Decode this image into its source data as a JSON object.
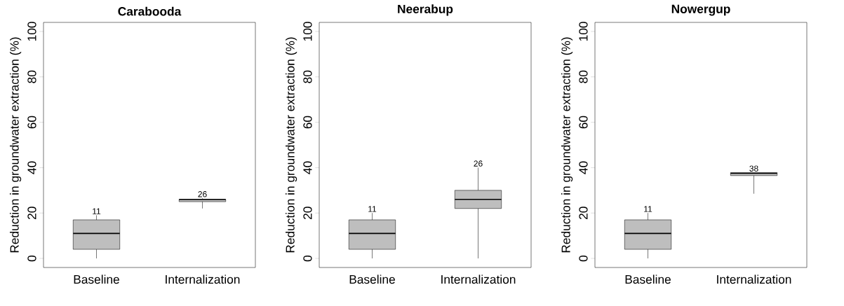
{
  "chart_data": [
    {
      "type": "box",
      "title": "Carabooda",
      "ylabel": "Reduction in groundwater extraction (%)",
      "categories": [
        "Baseline",
        "Internalization"
      ],
      "color": "#bebebe",
      "ylim": [
        -4,
        104
      ],
      "yticks": [
        0,
        20,
        40,
        60,
        80,
        100
      ],
      "grid": false,
      "boxes": [
        {
          "low": 0,
          "q1": 4,
          "median": 11,
          "q3": 17,
          "high": 19
        },
        {
          "low": 22,
          "q1": 25,
          "median": 26,
          "q3": 26,
          "high": 26.5
        }
      ],
      "annotations": [
        "11",
        "26"
      ]
    },
    {
      "type": "box",
      "title": "Neerabup",
      "ylabel": "Reduction in groundwater extraction (%)",
      "categories": [
        "Baseline",
        "Internalization"
      ],
      "color": "#bebebe",
      "ylim": [
        -4,
        104
      ],
      "yticks": [
        0,
        20,
        40,
        60,
        80,
        100
      ],
      "grid": false,
      "boxes": [
        {
          "low": 0,
          "q1": 4,
          "median": 11,
          "q3": 17,
          "high": 20
        },
        {
          "low": 0,
          "q1": 22,
          "median": 26,
          "q3": 30,
          "high": 40
        }
      ],
      "annotations": [
        "11",
        "26"
      ]
    },
    {
      "type": "box",
      "title": "Nowergup",
      "ylabel": "Reduction in groundwater extraction (%)",
      "categories": [
        "Baseline",
        "Internalization"
      ],
      "color": "#bebebe",
      "ylim": [
        -4,
        104
      ],
      "yticks": [
        0,
        20,
        40,
        60,
        80,
        100
      ],
      "grid": false,
      "boxes": [
        {
          "low": 0,
          "q1": 4,
          "median": 11,
          "q3": 17,
          "high": 20
        },
        {
          "low": 28.5,
          "q1": 36.5,
          "median": 37.5,
          "q3": 37.8,
          "high": 37.8
        }
      ],
      "annotations": [
        "11",
        "38"
      ]
    }
  ]
}
